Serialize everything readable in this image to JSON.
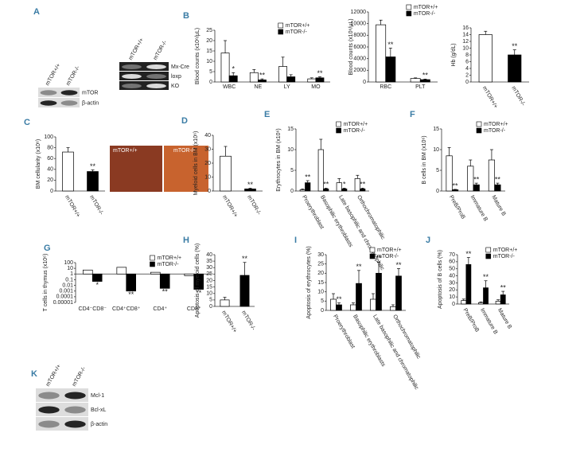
{
  "chart_data": [
    {
      "type": "bar",
      "panel": "B",
      "ylabel": "Blood counts (x10⁶/μL)",
      "categories": [
        "WBC",
        "NE",
        "LY",
        "MO"
      ],
      "series": [
        {
          "name": "mTOR+/+",
          "color": "#ffffff",
          "values": [
            14,
            4.5,
            7.5,
            1.5
          ],
          "errors": [
            6,
            1.5,
            4.5,
            0.5
          ],
          "significance": [
            null,
            null,
            null,
            null
          ]
        },
        {
          "name": "mTOR-/-",
          "color": "#000000",
          "values": [
            3,
            1,
            2.5,
            2
          ],
          "errors": [
            1.5,
            0.5,
            1,
            0.5
          ],
          "significance": [
            "*",
            "**",
            null,
            "**"
          ]
        }
      ],
      "ylim": [
        0,
        25
      ],
      "yticks": [
        0,
        5,
        10,
        15,
        20,
        25
      ]
    },
    {
      "type": "bar",
      "ylabel": "Blood counts (x10⁶/μL)",
      "categories": [
        "RBC",
        "PLT"
      ],
      "series": [
        {
          "name": "mTOR+/+",
          "color": "#ffffff",
          "values": [
            9800,
            600
          ],
          "errors": [
            800,
            100
          ],
          "significance": [
            null,
            null
          ]
        },
        {
          "name": "mTOR-/-",
          "color": "#000000",
          "values": [
            4300,
            400
          ],
          "errors": [
            1500,
            100
          ],
          "significance": [
            "**",
            "**"
          ]
        }
      ],
      "ylim": [
        0,
        12000
      ],
      "yticks": [
        0,
        2000,
        4000,
        6000,
        8000,
        10000,
        12000
      ]
    },
    {
      "type": "bar",
      "ylabel": "Hb (g/dL)",
      "categories": [
        "mTOR+/+",
        "mTOR-/-"
      ],
      "values": [
        14,
        8
      ],
      "colors": [
        "#ffffff",
        "#000000"
      ],
      "errors": [
        1,
        1.5
      ],
      "significance": [
        null,
        "**"
      ],
      "ylim": [
        0,
        16
      ],
      "yticks": [
        0,
        2,
        4,
        6,
        8,
        10,
        12,
        14,
        16
      ]
    },
    {
      "type": "bar",
      "panel": "C",
      "ylabel": "BM cellularity (x10⁶)",
      "categories": [
        "mTOR+/+",
        "mTOR-/-"
      ],
      "values": [
        72,
        36
      ],
      "colors": [
        "#ffffff",
        "#000000"
      ],
      "errors": [
        8,
        3
      ],
      "significance": [
        null,
        "**"
      ],
      "ylim": [
        0,
        100
      ],
      "yticks": [
        0,
        20,
        40,
        60,
        80,
        100
      ]
    },
    {
      "type": "bar",
      "panel": "D",
      "ylabel": "Myeloid cells in BM (x10⁶)",
      "categories": [
        "mTOR+/+",
        "mTOR-/-"
      ],
      "values": [
        25,
        1.5
      ],
      "colors": [
        "#ffffff",
        "#000000"
      ],
      "errors": [
        7,
        0.5
      ],
      "significance": [
        null,
        "**"
      ],
      "ylim": [
        0,
        40
      ],
      "yticks": [
        0,
        10,
        20,
        30,
        40
      ]
    },
    {
      "type": "bar",
      "panel": "E",
      "ylabel": "Erythrocytes in BM (x10⁶)",
      "categories": [
        "Proerythroblast",
        "Basophilic erythroblasts",
        "Late basophilic and chromatophilic",
        "Orthochromatophilic"
      ],
      "series": [
        {
          "name": "mTOR+/+",
          "color": "#ffffff",
          "values": [
            0.3,
            10,
            2,
            3
          ],
          "errors": [
            0.2,
            2.5,
            1,
            0.8
          ],
          "significance": [
            null,
            null,
            null,
            null
          ]
        },
        {
          "name": "mTOR-/-",
          "color": "#000000",
          "values": [
            2,
            0.5,
            0.5,
            0.5
          ],
          "errors": [
            0.5,
            0.2,
            0.2,
            0.2
          ],
          "significance": [
            "**",
            "**",
            "*",
            "**"
          ]
        }
      ],
      "ylim": [
        0,
        15
      ],
      "yticks": [
        0,
        5,
        10,
        15
      ]
    },
    {
      "type": "bar",
      "panel": "F",
      "ylabel": "B cells in BM (x10⁶)",
      "categories": [
        "PreB/ProB",
        "Immature B",
        "Mature B"
      ],
      "series": [
        {
          "name": "mTOR+/+",
          "color": "#ffffff",
          "values": [
            8.5,
            6,
            7.5
          ],
          "errors": [
            2,
            1.5,
            2.5
          ],
          "significance": [
            null,
            null,
            null
          ]
        },
        {
          "name": "mTOR-/-",
          "color": "#000000",
          "values": [
            0.3,
            1.5,
            1.5
          ],
          "errors": [
            0.1,
            0.4,
            0.4
          ],
          "significance": [
            "**",
            "**",
            "**"
          ]
        }
      ],
      "ylim": [
        0,
        15
      ],
      "yticks": [
        0,
        5,
        10,
        15
      ]
    },
    {
      "type": "bar",
      "panel": "G",
      "ylabel": "T cells in thymus (x10⁶)",
      "categories": [
        "CD4⁻CD8⁻",
        "CD4⁺CD8⁺",
        "CD4⁺",
        "CD8⁺"
      ],
      "log": true,
      "series": [
        {
          "name": "mTOR+/+",
          "color": "#ffffff",
          "values": [
            5,
            15,
            2,
            0.5
          ],
          "significance": [
            null,
            null,
            null,
            null
          ]
        },
        {
          "name": "mTOR-/-",
          "color": "#000000",
          "values": [
            0.05,
            0.001,
            0.003,
            0.002
          ],
          "significance": [
            "*",
            "**",
            "**",
            "**"
          ]
        }
      ],
      "ylim": [
        1e-05,
        100
      ],
      "yticks": [
        100,
        10,
        1,
        0.1,
        0.01,
        0.001,
        0.0001,
        1e-05
      ]
    },
    {
      "type": "bar",
      "panel": "H",
      "ylabel": "Apoptosis of myeloid cells (%)",
      "categories": [
        "mTOR+/+",
        "mTOR-/-"
      ],
      "values": [
        5,
        24
      ],
      "colors": [
        "#ffffff",
        "#000000"
      ],
      "errors": [
        2,
        10
      ],
      "significance": [
        null,
        "**"
      ],
      "ylim": [
        0,
        40
      ],
      "yticks": [
        0,
        5,
        10,
        15,
        20,
        25,
        30,
        35,
        40
      ]
    },
    {
      "type": "bar",
      "panel": "I",
      "ylabel": "Apoptosis of erythrocytes (%)",
      "categories": [
        "Proerythroblast",
        "Basophilic erythroblasts",
        "Late basophilic and chromatophilic",
        "Orthochromatophilic"
      ],
      "series": [
        {
          "name": "mTOR+/+",
          "color": "#ffffff",
          "values": [
            6,
            3,
            6,
            2
          ],
          "errors": [
            3,
            1,
            3,
            1
          ],
          "significance": [
            null,
            null,
            null,
            null
          ]
        },
        {
          "name": "mTOR-/-",
          "color": "#000000",
          "values": [
            3,
            14.5,
            20,
            18.5
          ],
          "errors": [
            1,
            7,
            6,
            4
          ],
          "significance": [
            "**",
            "**",
            "**",
            "**"
          ]
        }
      ],
      "ylim": [
        0,
        30
      ],
      "yticks": [
        0,
        5,
        10,
        15,
        20,
        25,
        30
      ]
    },
    {
      "type": "bar",
      "panel": "J",
      "ylabel": "Apoptosis of B cells (%)",
      "categories": [
        "PreB/ProB",
        "Immature B",
        "Mature B"
      ],
      "series": [
        {
          "name": "mTOR+/+",
          "color": "#ffffff",
          "values": [
            5,
            2,
            4
          ],
          "errors": [
            2,
            1,
            2
          ],
          "significance": [
            null,
            null,
            null
          ]
        },
        {
          "name": "mTOR-/-",
          "color": "#000000",
          "values": [
            56,
            23,
            13
          ],
          "errors": [
            10,
            10,
            5
          ],
          "significance": [
            "**",
            "**",
            "**"
          ]
        }
      ],
      "ylim": [
        0,
        70
      ],
      "yticks": [
        0,
        10,
        20,
        30,
        40,
        50,
        60,
        70
      ]
    }
  ],
  "blots": [
    {
      "panel": "A",
      "columns": [
        "mTOR+/+",
        "mTOR-/-"
      ],
      "rows": [
        "mTOR",
        "β-actin"
      ]
    },
    {
      "columns": [
        "mTOR+/+",
        "mTOR-/-"
      ],
      "rows": [
        "Mx-Cre",
        "loxp",
        "KO"
      ]
    },
    {
      "panel": "K",
      "columns": [
        "mTOR+/+",
        "mTOR-/-"
      ],
      "rows": [
        "Mcl-1",
        "Bcl-xL",
        "β-actin"
      ]
    }
  ],
  "photos": {
    "labels": [
      "mTOR+/+",
      "mTOR-/-"
    ]
  }
}
